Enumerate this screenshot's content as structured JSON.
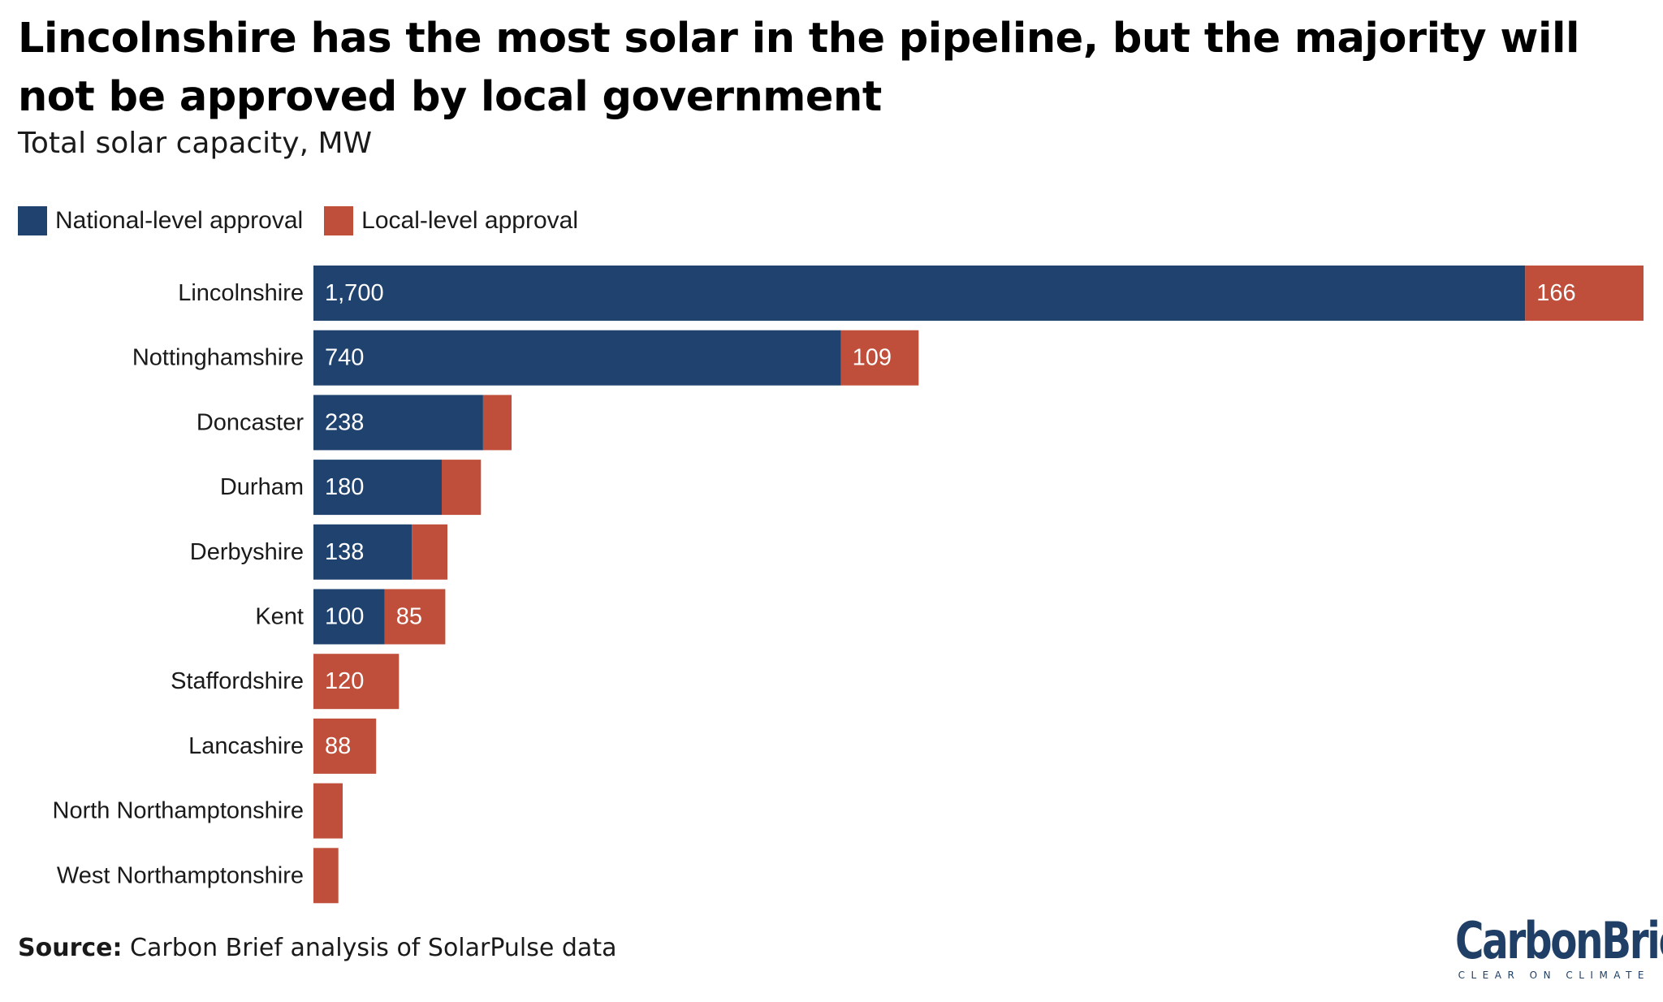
{
  "title": "Lincolnshire has the most solar in the pipeline, but the majority will not be approved by local government",
  "subtitle": "Total solar capacity, MW",
  "source": {
    "label": "Source:",
    "text": " Carbon Brief analysis of SolarPulse data"
  },
  "logo": {
    "text": "CarbonBrief",
    "tagline": "CLEAR ON CLIMATE"
  },
  "colors": {
    "national": "#1f436e",
    "local": "#bf4f3a"
  },
  "chart_data": {
    "type": "bar",
    "orientation": "horizontal",
    "stacked": true,
    "title": "Lincolnshire has the most solar in the pipeline, but the majority will not be approved by local government",
    "subtitle": "Total solar capacity, MW",
    "legend_position": "top-left",
    "grid": false,
    "categories": [
      "Lincolnshire",
      "Nottinghamshire",
      "Doncaster",
      "Durham",
      "Derbyshire",
      "Kent",
      "Staffordshire",
      "Lancashire",
      "North Northamptonshire",
      "West Northamptonshire"
    ],
    "series": [
      {
        "name": "National-level approval",
        "values": [
          1700,
          740,
          238,
          180,
          138,
          100,
          0,
          0,
          0,
          0
        ],
        "labels": [
          "1,700",
          "740",
          "238",
          "180",
          "138",
          "100",
          "",
          "",
          "",
          ""
        ]
      },
      {
        "name": "Local-level approval",
        "values": [
          166,
          109,
          40,
          55,
          50,
          85,
          120,
          88,
          41,
          35
        ],
        "labels": [
          "166",
          "109",
          "",
          "",
          "",
          "85",
          "120",
          "88",
          "",
          ""
        ]
      }
    ],
    "xlim": [
      0,
      1866
    ]
  }
}
